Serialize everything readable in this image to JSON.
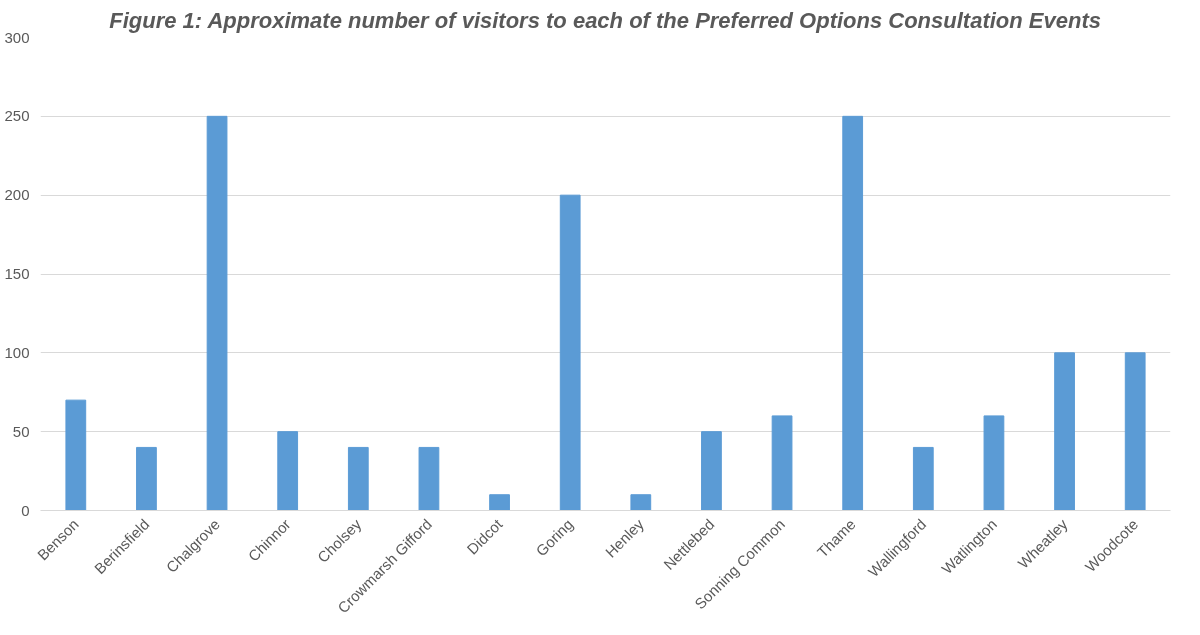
{
  "chart_data": {
    "type": "bar",
    "title": "Figure 1: Approximate number of visitors to each of the Preferred Options Consultation Events",
    "categories": [
      "Benson",
      "Berinsfield",
      "Chalgrove",
      "Chinnor",
      "Cholsey",
      "Crowmarsh Gifford",
      "Didcot",
      "Goring",
      "Henley",
      "Nettlebed",
      "Sonning Common",
      "Thame",
      "Wallingford",
      "Watlington",
      "Wheatley",
      "Woodcote"
    ],
    "values": [
      70,
      40,
      250,
      50,
      40,
      40,
      10,
      200,
      10,
      50,
      60,
      250,
      40,
      60,
      100,
      100
    ],
    "color": "#5b9bd5",
    "ylim": [
      0,
      300
    ],
    "yticks": [
      0,
      50,
      100,
      150,
      200,
      250,
      300
    ],
    "grid": "y"
  }
}
